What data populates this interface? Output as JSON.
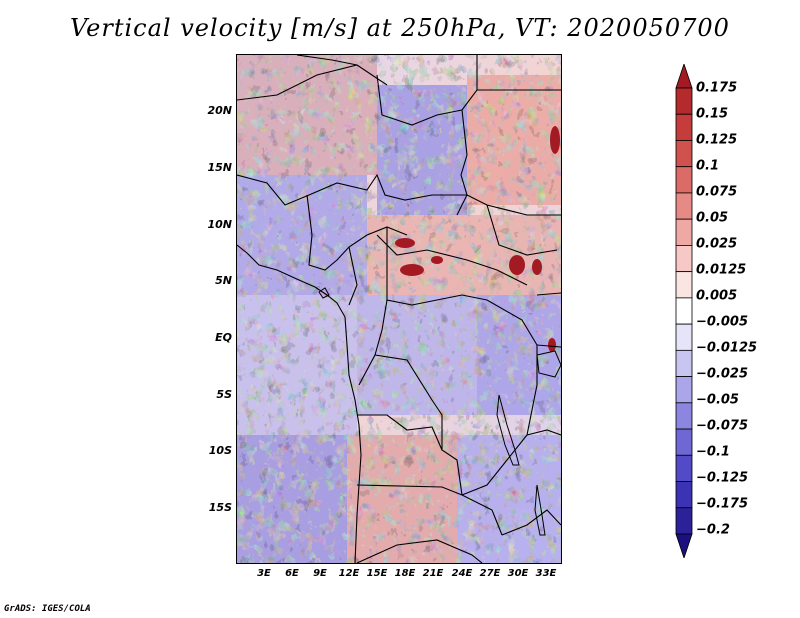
{
  "title": "Vertical velocity [m/s] at 250hPa, VT: 2020050700",
  "credit": "GrADS: IGES/COLA",
  "map": {
    "variable": "Vertical velocity",
    "units": "m/s",
    "level": "250hPa",
    "valid_time": "2020050700",
    "lat_labels": [
      "20N",
      "15N",
      "10N",
      "5N",
      "EQ",
      "5S",
      "10S",
      "15S"
    ],
    "lon_labels": [
      "3E",
      "6E",
      "9E",
      "12E",
      "15E",
      "18E",
      "21E",
      "24E",
      "27E",
      "30E",
      "33E"
    ]
  },
  "colorbar": {
    "labels": [
      "0.175",
      "0.15",
      "0.125",
      "0.1",
      "0.075",
      "0.05",
      "0.025",
      "0.0125",
      "0.005",
      "−0.005",
      "−0.0125",
      "−0.025",
      "−0.05",
      "−0.075",
      "−0.1",
      "−0.125",
      "−0.175",
      "−0.2"
    ],
    "colors": [
      "#a31a22",
      "#b52a2c",
      "#c43d3b",
      "#d0524e",
      "#db6b66",
      "#e58a85",
      "#efa9a5",
      "#f6c9c6",
      "#fbe5e3",
      "#ffffff",
      "#e6e4f8",
      "#c9c5f1",
      "#aba6ea",
      "#8d86e0",
      "#6f67d4",
      "#524ac6",
      "#3b33b3",
      "#2c2199",
      "#1c1080"
    ]
  }
}
